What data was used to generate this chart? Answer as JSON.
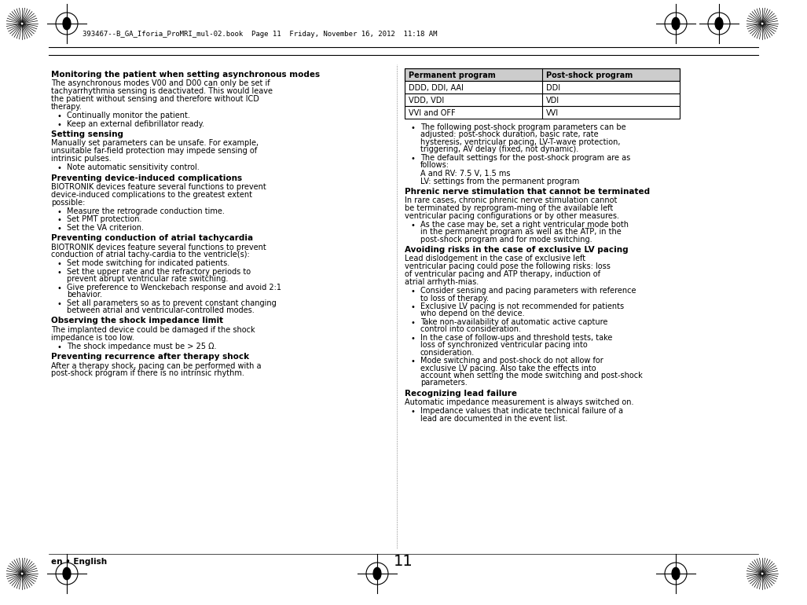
{
  "page_number": "11",
  "footer_left": "en • English",
  "header_text": "393467--B_GA_Iforia_ProMRI_mul-02.book  Page 11  Friday, November 16, 2012  11:18 AM",
  "bg_color": "#ffffff",
  "text_color": "#000000",
  "table_header_bg": "#d0d0d0",
  "table_border_color": "#000000",
  "left_column": [
    {
      "type": "heading",
      "text": "Monitoring the patient when setting asynchronous modes"
    },
    {
      "type": "body",
      "text": "The asynchronous modes V00 and D00 can only be set if tachyarrhythmia sensing is deactivated. This would leave the patient without sensing and therefore without ICD therapy."
    },
    {
      "type": "bullet",
      "text": "Continually monitor the patient."
    },
    {
      "type": "bullet",
      "text": "Keep an external defibrillator ready."
    },
    {
      "type": "heading",
      "text": "Setting sensing"
    },
    {
      "type": "body",
      "text": "Manually set parameters can be unsafe. For example, unsuitable far-field protection may impede sensing of intrinsic pulses."
    },
    {
      "type": "bullet",
      "text": "Note automatic sensitivity control."
    },
    {
      "type": "heading",
      "text": "Preventing device-induced complications"
    },
    {
      "type": "body",
      "text": "BIOTRONIK devices feature several functions to prevent device-induced complications to the greatest extent possible:"
    },
    {
      "type": "bullet",
      "text": "Measure the retrograde conduction time."
    },
    {
      "type": "bullet",
      "text": "Set PMT protection."
    },
    {
      "type": "bullet",
      "text": "Set the VA criterion."
    },
    {
      "type": "heading",
      "text": "Preventing conduction of atrial tachycardia"
    },
    {
      "type": "body",
      "text": "BIOTRONIK devices feature several functions to prevent conduction of atrial tachy-cardia to the ventricle(s):"
    },
    {
      "type": "bullet",
      "text": "Set mode switching for indicated patients."
    },
    {
      "type": "bullet",
      "text": "Set the upper rate and the refractory periods to prevent abrupt ventricular rate switching."
    },
    {
      "type": "bullet",
      "text": "Give preference to Wenckebach response and avoid 2:1 behavior."
    },
    {
      "type": "bullet",
      "text": "Set all parameters so as to prevent constant changing between atrial and ventricular-controlled modes."
    },
    {
      "type": "heading",
      "text": "Observing the shock impedance limit"
    },
    {
      "type": "body",
      "text": "The implanted device could be damaged if the shock impedance is too low."
    },
    {
      "type": "bullet",
      "text": "The shock impedance must be > 25 Ω."
    },
    {
      "type": "heading",
      "text": "Preventing recurrence after therapy shock"
    },
    {
      "type": "body",
      "text": "After a therapy shock, pacing can be performed with a post-shock program if there is no intrinsic rhythm."
    }
  ],
  "right_column": [
    {
      "type": "table",
      "headers": [
        "Permanent program",
        "Post-shock program"
      ],
      "rows": [
        [
          "DDD, DDI, AAI",
          "DDI"
        ],
        [
          "VDD, VDI",
          "VDI"
        ],
        [
          "VVI and OFF",
          "VVI"
        ]
      ]
    },
    {
      "type": "bullet",
      "text": "The following post-shock program parameters can be adjusted: post-shock duration, basic rate, rate hysteresis, ventricular pacing, LV-T-wave protection, triggering, AV delay (fixed, not dynamic)."
    },
    {
      "type": "bullet",
      "text": "The default settings for the post-shock program are as follows:"
    },
    {
      "type": "indent",
      "text": "A and RV: 7.5 V, 1.5 ms"
    },
    {
      "type": "indent",
      "text": "LV: settings from the permanent program"
    },
    {
      "type": "heading",
      "text": "Phrenic nerve stimulation that cannot be terminated"
    },
    {
      "type": "body",
      "text": "In rare cases, chronic phrenic nerve stimulation cannot be terminated by reprogram-ming of the available left ventricular pacing configurations or by other measures."
    },
    {
      "type": "bullet",
      "text": "As the case may be, set a right ventricular mode both in the permanent program as well as the ATP, in the post-shock program and for mode switching."
    },
    {
      "type": "heading",
      "text": "Avoiding risks in the case of exclusive LV pacing"
    },
    {
      "type": "body",
      "text": "Lead dislodgement in the case of exclusive left ventricular pacing could pose the following risks: loss of ventricular pacing and ATP therapy, induction of atrial arrhyth-mias."
    },
    {
      "type": "bullet",
      "text": "Consider sensing and pacing parameters with reference to loss of therapy."
    },
    {
      "type": "bullet",
      "text": "Exclusive LV pacing is not recommended for patients who depend on the device."
    },
    {
      "type": "bullet",
      "text": "Take non-availability of automatic active capture control into consideration."
    },
    {
      "type": "bullet",
      "text": "In the case of follow-ups and threshold tests, take loss of synchronized ventricular pacing into consideration."
    },
    {
      "type": "bullet",
      "text": "Mode switching and post-shock do not allow for exclusive LV pacing. Also take the effects into account when setting the mode switching and post-shock parameters."
    },
    {
      "type": "heading",
      "text": "Recognizing lead failure"
    },
    {
      "type": "body",
      "text": "Automatic impedance measurement is always switched on."
    },
    {
      "type": "bullet",
      "text": "Impedance values that indicate technical failure of a lead are documented in the event list."
    }
  ]
}
